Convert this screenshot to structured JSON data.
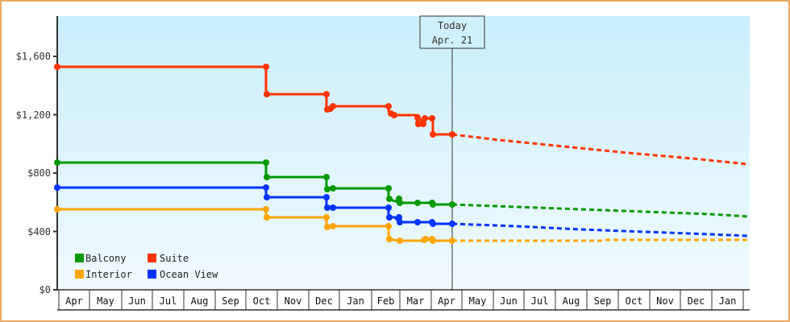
{
  "chart_data": {
    "type": "line",
    "title": "",
    "xlabel": "",
    "ylabel": "",
    "ylim": [
      0,
      1880
    ],
    "yticks": [
      "$0",
      "$400",
      "$800",
      "$1,200",
      "$1,600"
    ],
    "ytick_values": [
      0,
      400,
      800,
      1200,
      1600
    ],
    "months": [
      "Apr",
      "May",
      "Jun",
      "Jul",
      "Aug",
      "Sep",
      "Oct",
      "Nov",
      "Dec",
      "Jan",
      "Feb",
      "Mar",
      "Apr",
      "May",
      "Jun",
      "Jul",
      "Aug",
      "Sep",
      "Oct",
      "Nov",
      "Dec",
      "Jan"
    ],
    "today_marker": {
      "line1": "Today",
      "line2": "Apr. 21"
    },
    "legend": [
      {
        "name": "Balcony",
        "color": "#009900"
      },
      {
        "name": "Suite",
        "color": "#ff3300"
      },
      {
        "name": "Interior",
        "color": "#ffa500"
      },
      {
        "name": "Ocean View",
        "color": "#0033ff"
      }
    ],
    "series": [
      {
        "name": "Suite",
        "color": "#ff3300",
        "history": [
          [
            "Apr",
            1530
          ],
          [
            "Oct",
            1530
          ],
          [
            "Oct",
            1340
          ],
          [
            "Dec",
            1340
          ],
          [
            "Dec",
            1240
          ],
          [
            "Dec",
            1250
          ],
          [
            "Feb",
            1250
          ],
          [
            "Feb",
            1210
          ],
          [
            "Feb",
            1190
          ],
          [
            "Mar",
            1190
          ],
          [
            "Mar",
            1140
          ],
          [
            "Mar",
            1180
          ],
          [
            "Apr",
            1180
          ],
          [
            "Apr",
            1065
          ],
          [
            "Today",
            1065
          ]
        ],
        "forecast_end": 860
      },
      {
        "name": "Balcony",
        "color": "#009900",
        "history": [
          [
            "Apr",
            870
          ],
          [
            "Oct",
            870
          ],
          [
            "Oct",
            775
          ],
          [
            "Dec",
            775
          ],
          [
            "Dec",
            695
          ],
          [
            "Dec",
            700
          ],
          [
            "Feb",
            700
          ],
          [
            "Feb",
            625
          ],
          [
            "Feb",
            620
          ],
          [
            "Mar",
            600
          ],
          [
            "Apr",
            598
          ],
          [
            "Today",
            585
          ]
        ],
        "forecast_end": 505
      },
      {
        "name": "Ocean View",
        "color": "#0033ff",
        "history": [
          [
            "Apr",
            700
          ],
          [
            "Oct",
            700
          ],
          [
            "Oct",
            635
          ],
          [
            "Dec",
            635
          ],
          [
            "Dec",
            565
          ],
          [
            "Feb",
            565
          ],
          [
            "Feb",
            500
          ],
          [
            "Feb",
            490
          ],
          [
            "Mar",
            465
          ],
          [
            "Apr",
            465
          ],
          [
            "Today",
            450
          ]
        ],
        "forecast_end": 370
      },
      {
        "name": "Interior",
        "color": "#ffa500",
        "history": [
          [
            "Apr",
            550
          ],
          [
            "Oct",
            550
          ],
          [
            "Oct",
            500
          ],
          [
            "Dec",
            500
          ],
          [
            "Dec",
            435
          ],
          [
            "Feb",
            435
          ],
          [
            "Feb",
            355
          ],
          [
            "Feb",
            345
          ],
          [
            "Mar",
            345
          ],
          [
            "Mar",
            350
          ],
          [
            "Apr",
            345
          ],
          [
            "Today",
            340
          ]
        ],
        "forecast_end": 345
      }
    ]
  }
}
